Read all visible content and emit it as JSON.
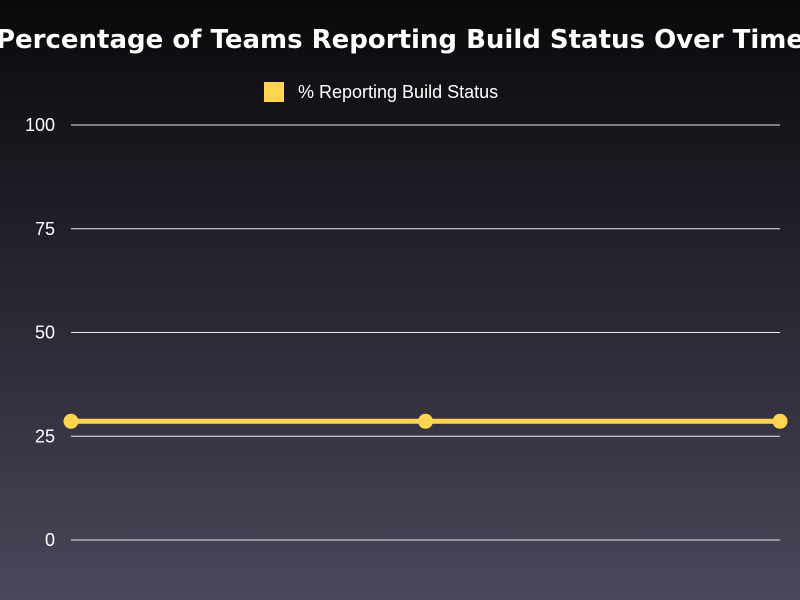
{
  "chart_data": {
    "type": "line",
    "title": "Percentage of Teams Reporting Build Status Over Time",
    "xlabel": "",
    "ylabel": "",
    "x": [
      "",
      "",
      ""
    ],
    "series": [
      {
        "name": "% Reporting Build Status",
        "values": [
          28.6,
          28.6,
          28.6
        ],
        "color": "#ffd54f"
      }
    ],
    "ylim": [
      0,
      100
    ],
    "yticks": [
      "0",
      "25",
      "50",
      "75",
      "100"
    ],
    "grid": true,
    "legend_position": "top-center"
  }
}
